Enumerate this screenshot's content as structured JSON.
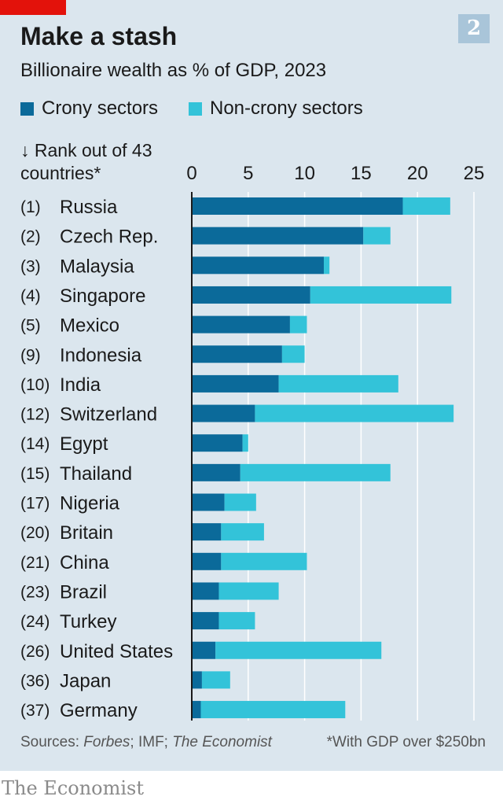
{
  "header": {
    "figure_number": "2",
    "title": "Make a stash",
    "subtitle": "Billionaire wealth as % of GDP, 2023"
  },
  "legend": {
    "crony": "Crony sectors",
    "noncrony": "Non-crony sectors"
  },
  "rank_header": {
    "line1": "↓ Rank out of 43",
    "line2": "countries*"
  },
  "footer": {
    "sources_prefix": "Sources: ",
    "sources_forbes": "Forbes",
    "sources_mid": "; IMF; ",
    "sources_economist": "The Economist",
    "footnote": "*With GDP over $250bn",
    "brand": "The Economist"
  },
  "colors": {
    "crony": "#0b6a9a",
    "noncrony": "#33c3d9",
    "background": "#dbe6ee",
    "grid": "#ffffff",
    "brand_red": "#e3120b"
  },
  "chart_data": {
    "type": "bar",
    "orientation": "horizontal",
    "stacked": true,
    "xlim": [
      0,
      25
    ],
    "x_ticks": [
      "0",
      "5",
      "10",
      "15",
      "20",
      "25"
    ],
    "grid": true,
    "categories": [
      "Russia",
      "Czech Rep.",
      "Malaysia",
      "Singapore",
      "Mexico",
      "Indonesia",
      "India",
      "Switzerland",
      "Egypt",
      "Thailand",
      "Nigeria",
      "Britain",
      "China",
      "Brazil",
      "Turkey",
      "United States",
      "Japan",
      "Germany"
    ],
    "ranks": [
      "(1)",
      "(2)",
      "(3)",
      "(4)",
      "(5)",
      "(9)",
      "(10)",
      "(12)",
      "(14)",
      "(15)",
      "(17)",
      "(20)",
      "(21)",
      "(23)",
      "(24)",
      "(26)",
      "(36)",
      "(37)"
    ],
    "series": [
      {
        "name": "Crony sectors",
        "values": [
          18.7,
          15.2,
          11.7,
          10.5,
          8.7,
          8.0,
          7.7,
          5.6,
          4.5,
          4.3,
          2.9,
          2.6,
          2.6,
          2.4,
          2.4,
          2.1,
          0.9,
          0.8
        ]
      },
      {
        "name": "Non-crony sectors",
        "values": [
          4.2,
          2.4,
          0.5,
          12.5,
          1.5,
          2.0,
          10.6,
          17.6,
          0.5,
          13.3,
          2.8,
          3.8,
          7.6,
          5.3,
          3.2,
          14.7,
          2.5,
          12.8
        ]
      }
    ]
  }
}
